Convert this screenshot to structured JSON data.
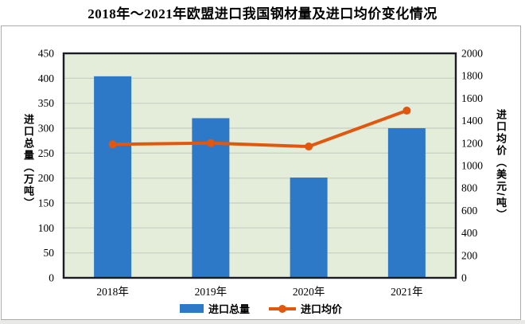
{
  "title": "2018年～2021年欧盟进口我国钢材量及进口均价变化情况",
  "colors": {
    "bar_blue": "#2E78C8",
    "line_orange": "#E2570E",
    "plot_background": "#E3EDD9",
    "gridline": "#CBD3C6",
    "plot_border": "#1B1B24",
    "box_border": "#ABABAB",
    "text": "#000000"
  },
  "chart_data": {
    "type": "bar",
    "subtype": "bar+line combo, dual axis",
    "title": "2018年～2021年欧盟进口我国钢材量及进口均价变化情况",
    "categories": [
      "2018年",
      "2019年",
      "2020年",
      "2021年"
    ],
    "series": [
      {
        "name": "进口总量",
        "chart": "bar",
        "axis": "left",
        "unit": "万吨",
        "color": "#2E78C8",
        "values": [
          404,
          320,
          201,
          300
        ]
      },
      {
        "name": "进口均价",
        "chart": "line",
        "axis": "right",
        "unit": "美元/吨",
        "color": "#E2570E",
        "values": [
          1190,
          1200,
          1170,
          1490
        ]
      }
    ],
    "left_axis": {
      "title": "进口总量（万吨）",
      "min": 0,
      "max": 450,
      "step": 50,
      "ticks": [
        0,
        50,
        100,
        150,
        200,
        250,
        300,
        350,
        400,
        450
      ]
    },
    "right_axis": {
      "title": "进口均价（美元/吨）",
      "min": 0,
      "max": 2000,
      "step": 200,
      "ticks": [
        0,
        200,
        400,
        600,
        800,
        1000,
        1200,
        1400,
        1600,
        1800,
        2000
      ]
    },
    "grid": true,
    "legend_position": "bottom"
  }
}
